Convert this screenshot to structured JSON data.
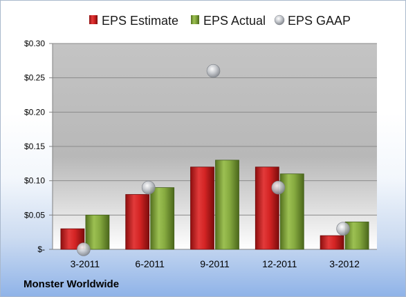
{
  "company": "Monster Worldwide",
  "colors": {
    "estimate": "#cc1f1f",
    "actual": "#7fa13a",
    "gaap": "#b8bcc2"
  },
  "chart_data": {
    "type": "bar",
    "categories": [
      "3-2011",
      "6-2011",
      "9-2011",
      "12-2011",
      "3-2012"
    ],
    "series": [
      {
        "name": "EPS Estimate",
        "values": [
          0.03,
          0.08,
          0.12,
          0.12,
          0.02
        ]
      },
      {
        "name": "EPS Actual",
        "values": [
          0.05,
          0.09,
          0.13,
          0.11,
          0.04
        ]
      },
      {
        "name": "EPS GAAP",
        "marker": "bubble",
        "values": [
          0.0,
          0.09,
          0.26,
          0.09,
          0.03
        ]
      }
    ],
    "ylim": [
      0,
      0.3
    ],
    "yticks": [
      0,
      0.05,
      0.1,
      0.15,
      0.2,
      0.25,
      0.3
    ],
    "ytick_labels": [
      "$-",
      "$0.05",
      "$0.10",
      "$0.15",
      "$0.20",
      "$0.25",
      "$0.30"
    ],
    "grid": true,
    "legend": "top"
  }
}
